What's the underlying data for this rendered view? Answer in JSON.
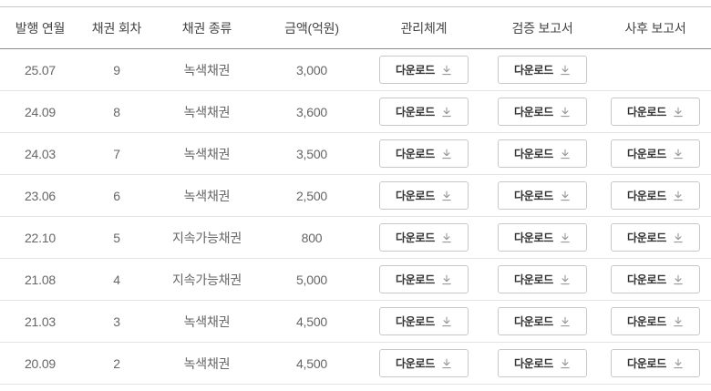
{
  "table": {
    "columns": [
      {
        "key": "issue_date",
        "label": "발행 연월"
      },
      {
        "key": "bond_series",
        "label": "채권 회차"
      },
      {
        "key": "bond_type",
        "label": "채권 종류"
      },
      {
        "key": "amount",
        "label": "금액(억원)"
      },
      {
        "key": "management",
        "label": "관리체계"
      },
      {
        "key": "verification",
        "label": "검증 보고서"
      },
      {
        "key": "post_report",
        "label": "사후 보고서"
      }
    ],
    "download_label": "다운로드",
    "rows": [
      {
        "issue_date": "25.07",
        "bond_series": "9",
        "bond_type": "녹색채권",
        "amount": "3,000",
        "management": true,
        "verification": true,
        "post_report": false
      },
      {
        "issue_date": "24.09",
        "bond_series": "8",
        "bond_type": "녹색채권",
        "amount": "3,600",
        "management": true,
        "verification": true,
        "post_report": true
      },
      {
        "issue_date": "24.03",
        "bond_series": "7",
        "bond_type": "녹색채권",
        "amount": "3,500",
        "management": true,
        "verification": true,
        "post_report": true
      },
      {
        "issue_date": "23.06",
        "bond_series": "6",
        "bond_type": "녹색채권",
        "amount": "2,500",
        "management": true,
        "verification": true,
        "post_report": true
      },
      {
        "issue_date": "22.10",
        "bond_series": "5",
        "bond_type": "지속가능채권",
        "amount": "800",
        "management": true,
        "verification": true,
        "post_report": true
      },
      {
        "issue_date": "21.08",
        "bond_series": "4",
        "bond_type": "지속가능채권",
        "amount": "5,000",
        "management": true,
        "verification": true,
        "post_report": true
      },
      {
        "issue_date": "21.03",
        "bond_series": "3",
        "bond_type": "녹색채권",
        "amount": "4,500",
        "management": true,
        "verification": true,
        "post_report": true
      },
      {
        "issue_date": "20.09",
        "bond_series": "2",
        "bond_type": "녹색채권",
        "amount": "4,500",
        "management": true,
        "verification": true,
        "post_report": true
      }
    ]
  },
  "colors": {
    "header_text": "#444444",
    "body_text": "#666666",
    "button_text": "#333333",
    "button_border": "#c8c8c8",
    "header_rule": "#8c8c8c",
    "row_rule": "#e4e4e4",
    "icon": "#999999"
  }
}
